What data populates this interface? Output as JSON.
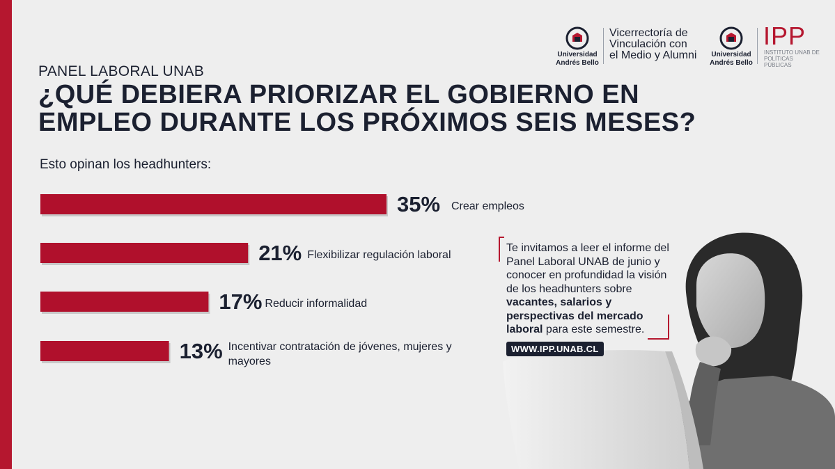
{
  "header": {
    "kicker": "PANEL LABORAL UNAB",
    "title": "¿QUÉ DEBIERA PRIORIZAR EL GOBIERNO EN EMPLEO DURANTE LOS PRÓXIMOS SEIS MESES?",
    "subtitle": "Esto opinan los headhunters:"
  },
  "logos": {
    "unab_1": {
      "line1": "Universidad",
      "line2": "Andrés Bello"
    },
    "vicerrectoria": {
      "line1": "Vicerrectoría de",
      "line2": "Vinculación con",
      "line3": "el Medio y Alumni"
    },
    "unab_2": {
      "line1": "Universidad",
      "line2": "Andrés Bello"
    },
    "ipp": {
      "mark": "IPP",
      "line1": "INSTITUTO UNAB DE",
      "line2": "POLÍTICAS PÚBLICAS"
    }
  },
  "chart_data": {
    "type": "bar",
    "orientation": "horizontal",
    "categories": [
      "Crear empleos",
      "Flexibilizar regulación laboral",
      "Reducir informalidad",
      "Incentivar contratación de jóvenes, mujeres y mayores"
    ],
    "values": [
      35,
      21,
      17,
      13
    ],
    "value_labels": [
      "35%",
      "21%",
      "17%",
      "13%"
    ],
    "unit": "%",
    "title": "¿QUÉ DEBIERA PRIORIZAR EL GOBIERNO EN EMPLEO DURANTE LOS PRÓXIMOS SEIS MESES?",
    "subtitle": "Esto opinan los headhunters:",
    "xlim": [
      0,
      35
    ],
    "grid": false,
    "legend": "none",
    "bar_color": "#b0102c"
  },
  "callout": {
    "text_before": "Te invitamos a leer el informe del Panel Laboral UNAB de junio y conocer en profundidad la visión de los headhunters sobre ",
    "text_bold": "vacantes, salarios y perspectivas del mercado laboral",
    "text_after": " para este semestre.",
    "url": "WWW.IPP.UNAB.CL",
    "border_color": "#b5172f"
  },
  "colors": {
    "accent": "#b5172f",
    "bar": "#b0102c",
    "text": "#1b2030",
    "background": "#eeeeee"
  }
}
